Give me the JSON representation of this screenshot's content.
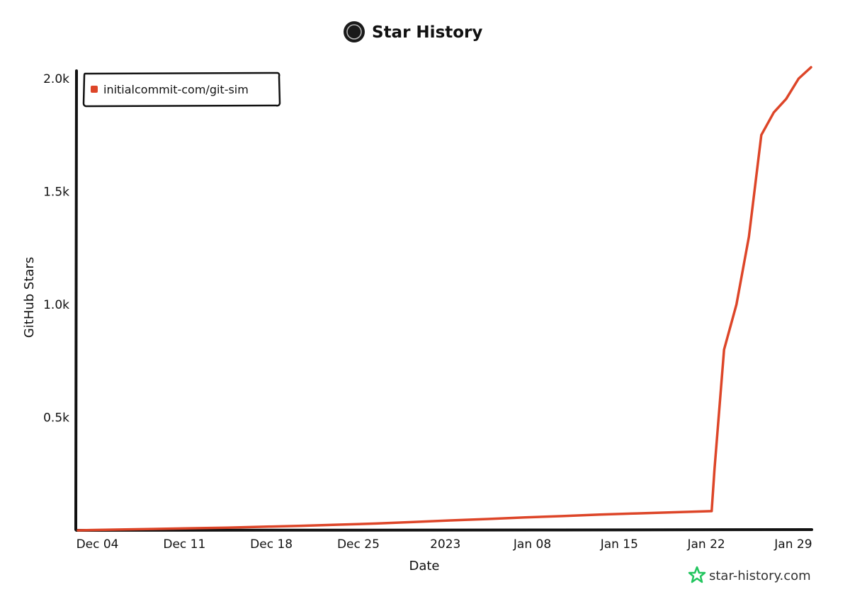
{
  "chart_data": {
    "type": "line",
    "title": "Star History",
    "xlabel": "Date",
    "ylabel": "GitHub Stars",
    "x_ticks": [
      "Dec 04",
      "Dec 11",
      "Dec 18",
      "Dec 25",
      "2023",
      "Jan 08",
      "Jan 15",
      "Jan 22",
      "Jan 29"
    ],
    "y_ticks": [
      "0.5k",
      "1.0k",
      "1.5k",
      "2.0k"
    ],
    "ylim": [
      0,
      2050
    ],
    "legend_position": "top-left",
    "grid": false,
    "series": [
      {
        "name": "initialcommit-com/git-sim",
        "color": "#dd4528",
        "x": [
          "2022-12-03",
          "2022-12-06",
          "2022-12-09",
          "2022-12-12",
          "2022-12-15",
          "2022-12-18",
          "2022-12-21",
          "2022-12-24",
          "2022-12-27",
          "2022-12-30",
          "2023-01-02",
          "2023-01-05",
          "2023-01-08",
          "2023-01-11",
          "2023-01-14",
          "2023-01-17",
          "2023-01-20",
          "2023-01-23",
          "2023-01-23",
          "2023-01-24",
          "2023-01-25",
          "2023-01-26",
          "2023-01-27",
          "2023-01-28",
          "2023-01-29",
          "2023-01-30",
          "2023-01-31"
        ],
        "y": [
          0,
          3,
          6,
          9,
          12,
          16,
          20,
          25,
          30,
          37,
          44,
          50,
          57,
          63,
          70,
          75,
          80,
          85,
          270,
          800,
          1000,
          1300,
          1750,
          1850,
          1910,
          2000,
          2050
        ]
      }
    ]
  },
  "branding": {
    "site": "star-history.com",
    "logo_colors": [
      "#1a1a1a",
      "#22c55e"
    ]
  }
}
